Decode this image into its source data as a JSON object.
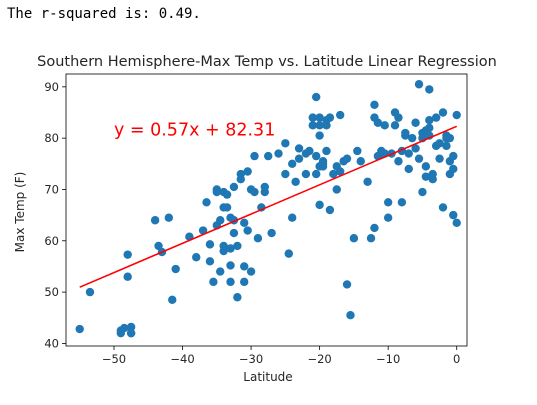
{
  "output": {
    "text": "The r-squared is: 0.49."
  },
  "chart_data": {
    "type": "scatter",
    "title": "Southern Hemisphere-Max Temp vs. Latitude Linear Regression",
    "xlabel": "Latitude",
    "ylabel": "Max Temp (F)",
    "xlim": [
      -57,
      1.5
    ],
    "ylim": [
      39.5,
      92.5
    ],
    "xticks": [
      -50,
      -40,
      -30,
      -20,
      -10,
      0
    ],
    "yticks": [
      40,
      50,
      60,
      70,
      80,
      90
    ],
    "grid": false,
    "legend": "none",
    "colors": {
      "points": "#1f77b4",
      "regression": "#ff0000",
      "annotation": "#ff0000"
    },
    "regression": {
      "slope": 0.57,
      "intercept": 82.31,
      "x_range": [
        -55,
        0
      ],
      "annotation": "y = 0.57x + 82.31",
      "annotation_pos": [
        -50,
        80.5
      ]
    },
    "points": {
      "x": [
        -55,
        -53.5,
        -49,
        -49,
        -48.5,
        -48,
        -48,
        -47.5,
        -47.5,
        -47.5,
        -44,
        -43.5,
        -43,
        -42,
        -41.5,
        -41,
        -39,
        -38,
        -37,
        -36.5,
        -36,
        -36,
        -35.5,
        -35,
        -35,
        -35,
        -34.5,
        -34.5,
        -34,
        -34,
        -34,
        -34,
        -33.5,
        -33.5,
        -33,
        -33,
        -33,
        -33,
        -32.5,
        -32.5,
        -32.5,
        -32,
        -32,
        -31.5,
        -31.5,
        -31,
        -31,
        -31,
        -30.5,
        -30.5,
        -30,
        -30,
        -29.5,
        -29.5,
        -29,
        -28.5,
        -28,
        -28,
        -27.5,
        -27,
        -26,
        -25,
        -25,
        -24.5,
        -24,
        -24,
        -23.5,
        -23,
        -23,
        -22,
        -22,
        -21.5,
        -21,
        -21,
        -20.5,
        -20.5,
        -20.5,
        -20,
        -20,
        -20,
        -20,
        -20,
        -19.5,
        -19.5,
        -19.5,
        -19,
        -19,
        -19,
        -18.5,
        -18.5,
        -18,
        -17.5,
        -17.5,
        -17,
        -17,
        -16.5,
        -16,
        -16,
        -15.5,
        -15,
        -14.5,
        -14,
        -13,
        -12.5,
        -12,
        -12,
        -12,
        -11.5,
        -11.5,
        -11,
        -11,
        -10.5,
        -10.5,
        -10,
        -10,
        -9.5,
        -9,
        -9,
        -8.5,
        -8.5,
        -8,
        -8,
        -7.5,
        -7.5,
        -7,
        -7,
        -6.5,
        -6,
        -6,
        -5.5,
        -5.5,
        -5,
        -5,
        -5,
        -4.5,
        -4.5,
        -4.5,
        -4,
        -4,
        -4,
        -4,
        -3.5,
        -3.5,
        -3,
        -3,
        -2.5,
        -2.5,
        -2,
        -2,
        -1.5,
        -1.5,
        -1.5,
        -1,
        -1,
        -1,
        -0.5,
        -0.5,
        -0.5,
        0,
        0
      ],
      "y": [
        42.8,
        50,
        42,
        42.5,
        43,
        57.3,
        53,
        43.2,
        42,
        42,
        64,
        59,
        57.8,
        64.5,
        48.5,
        54.5,
        60.8,
        56.8,
        62,
        67.5,
        56,
        59.3,
        52,
        70,
        69.5,
        63,
        54,
        64,
        66.5,
        69.5,
        59,
        58,
        69,
        66.5,
        58.5,
        64.5,
        55.2,
        52,
        70.5,
        61.5,
        64,
        49,
        59,
        72,
        73,
        63.5,
        55,
        52,
        73.5,
        62,
        70,
        54,
        76.5,
        69.5,
        60.5,
        66.5,
        69.5,
        70.5,
        76.5,
        61.5,
        77,
        79,
        73,
        57.5,
        75,
        64.5,
        71.5,
        76,
        78,
        77,
        73,
        77.5,
        82.5,
        84,
        88,
        76.5,
        73,
        67,
        74.5,
        82.5,
        84,
        80.5,
        74.5,
        75.5,
        75,
        83.5,
        82.5,
        77.5,
        84,
        66,
        73,
        74.5,
        70,
        84.5,
        73.5,
        75.5,
        51.5,
        76,
        45.5,
        60.5,
        77.5,
        75.5,
        71.5,
        60.5,
        62.5,
        84,
        86.5,
        76.5,
        83,
        77.5,
        77,
        82.5,
        77,
        64.5,
        67.5,
        77,
        85,
        82.5,
        75.5,
        84,
        67.5,
        77.5,
        80.5,
        81,
        77,
        74,
        80,
        83,
        78,
        90.5,
        76,
        69.5,
        80,
        81,
        72.5,
        74.5,
        81.5,
        83.5,
        89.5,
        82,
        80.5,
        72,
        73,
        84,
        78.5,
        79,
        76,
        66.5,
        85,
        80,
        78.5,
        80.5,
        75.5,
        73,
        80,
        74,
        76.5,
        65,
        84.5,
        63.5
      ]
    }
  }
}
